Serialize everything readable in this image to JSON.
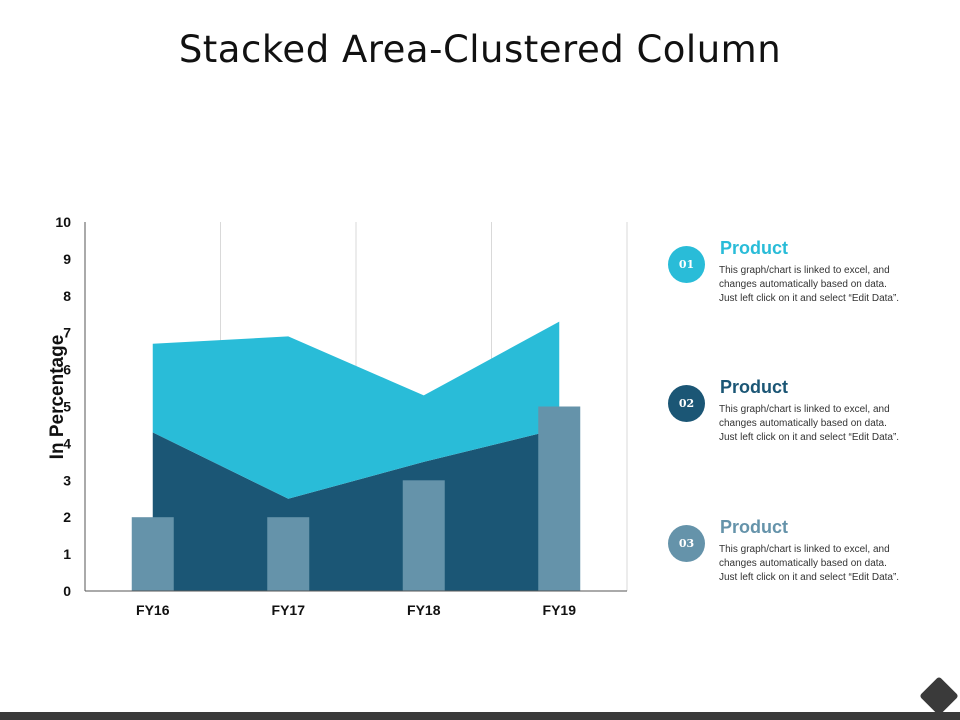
{
  "title": "Stacked Area-Clustered Column",
  "chart_data": {
    "type": "area",
    "categories": [
      "FY16",
      "FY17",
      "FY18",
      "FY19"
    ],
    "ylabel": "In Percentage",
    "xlabel": "",
    "ylim": [
      0,
      10
    ],
    "yticks": [
      0,
      1,
      2,
      3,
      4,
      5,
      6,
      7,
      8,
      9,
      10
    ],
    "series": [
      {
        "kind": "area",
        "values": [
          4.3,
          2.5,
          3.5,
          4.4
        ],
        "color": "#1b5675"
      },
      {
        "kind": "area",
        "values": [
          2.4,
          4.4,
          1.8,
          2.9
        ],
        "color": "#29bcd8"
      },
      {
        "kind": "column",
        "values": [
          2,
          2,
          3,
          5
        ],
        "color": "#6593aa"
      }
    ],
    "grid": "vertical"
  },
  "legend": [
    {
      "number": "01",
      "title": "Product",
      "description": "This graph/chart is linked to excel, and changes automatically based on data. Just left click on it and select “Edit Data”.",
      "color": "#29bcd8"
    },
    {
      "number": "02",
      "title": "Product",
      "description": "This graph/chart is linked to excel, and changes automatically based on data. Just left click on it and select “Edit Data”.",
      "color": "#1b5675"
    },
    {
      "number": "03",
      "title": "Product",
      "description": "This graph/chart is linked to excel, and changes automatically based on data. Just left click on it and select “Edit Data”.",
      "color": "#6593aa"
    }
  ]
}
